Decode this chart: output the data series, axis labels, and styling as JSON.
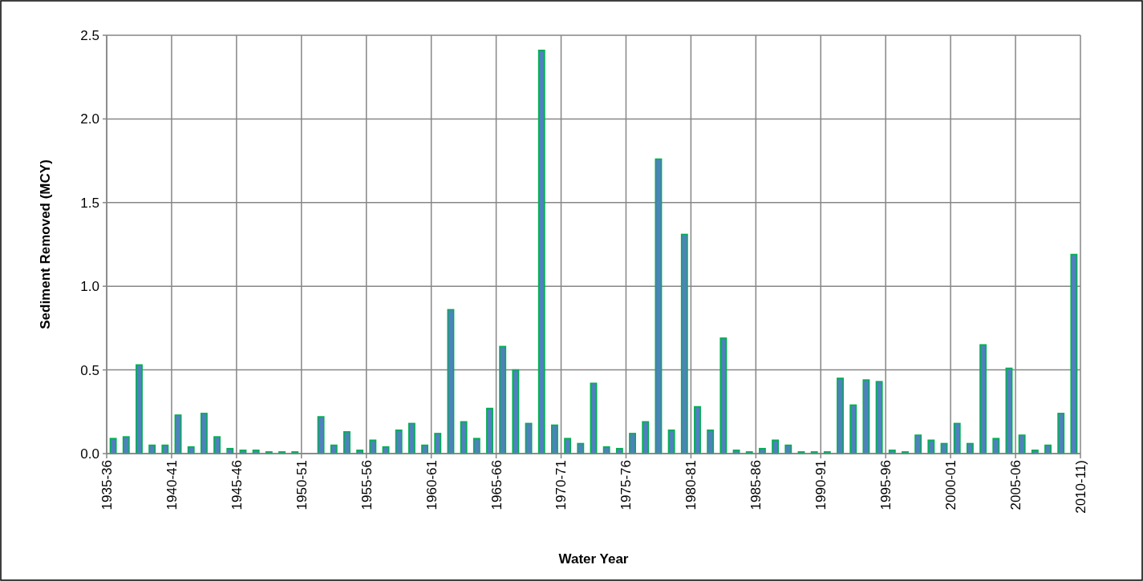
{
  "chart_data": {
    "type": "bar",
    "xlabel": "Water Year",
    "ylabel": "Sediment Removed  (MCY)",
    "categories": [
      "1935-36",
      null,
      null,
      null,
      null,
      "1940-41",
      null,
      null,
      null,
      null,
      "1945-46",
      null,
      null,
      null,
      null,
      "1950-51",
      null,
      null,
      null,
      null,
      "1955-56",
      null,
      null,
      null,
      null,
      "1960-61",
      null,
      null,
      null,
      null,
      "1965-66",
      null,
      null,
      null,
      null,
      "1970-71",
      null,
      null,
      null,
      null,
      "1975-76",
      null,
      null,
      null,
      null,
      "1980-81",
      null,
      null,
      null,
      null,
      "1985-86",
      null,
      null,
      null,
      null,
      "1990-91",
      null,
      null,
      null,
      null,
      "1995-96",
      null,
      null,
      null,
      null,
      "2000-01",
      null,
      null,
      null,
      null,
      "2005-06",
      null,
      null,
      null,
      null,
      "2010-11)"
    ],
    "values": [
      0.09,
      0.1,
      0.53,
      0.05,
      0.05,
      0.23,
      0.04,
      0.24,
      0.1,
      0.03,
      0.02,
      0.02,
      0.01,
      0.01,
      0.01,
      0,
      0.22,
      0.05,
      0.13,
      0.02,
      0.08,
      0.04,
      0.14,
      0.18,
      0.05,
      0.12,
      0.86,
      0.19,
      0.09,
      0.27,
      0.64,
      0.5,
      0.18,
      2.41,
      0.17,
      0.09,
      0.06,
      0.42,
      0.04,
      0.03,
      0.12,
      0.19,
      1.76,
      0.14,
      1.31,
      0.28,
      0.14,
      0.69,
      0.02,
      0.01,
      0.03,
      0.08,
      0.05,
      0.01,
      0.01,
      0.01,
      0.45,
      0.29,
      0.44,
      0.43,
      0.02,
      0.01,
      0.11,
      0.08,
      0.06,
      0.18,
      0.06,
      0.65,
      0.09,
      0.51,
      0.11,
      0.02,
      0.05,
      0.24,
      1.19,
      null
    ],
    "color": "#4f81bd",
    "ylim": [
      0,
      2.5
    ],
    "yticks": [
      {
        "value": 0,
        "label": "0.0"
      },
      {
        "value": 0.5,
        "label": "0.5"
      },
      {
        "value": 1,
        "label": "1.0"
      },
      {
        "value": 1.5,
        "label": "1.5"
      },
      {
        "value": 2,
        "label": "2.0"
      },
      {
        "value": 2.5,
        "label": "2.5"
      }
    ],
    "grid": true
  }
}
